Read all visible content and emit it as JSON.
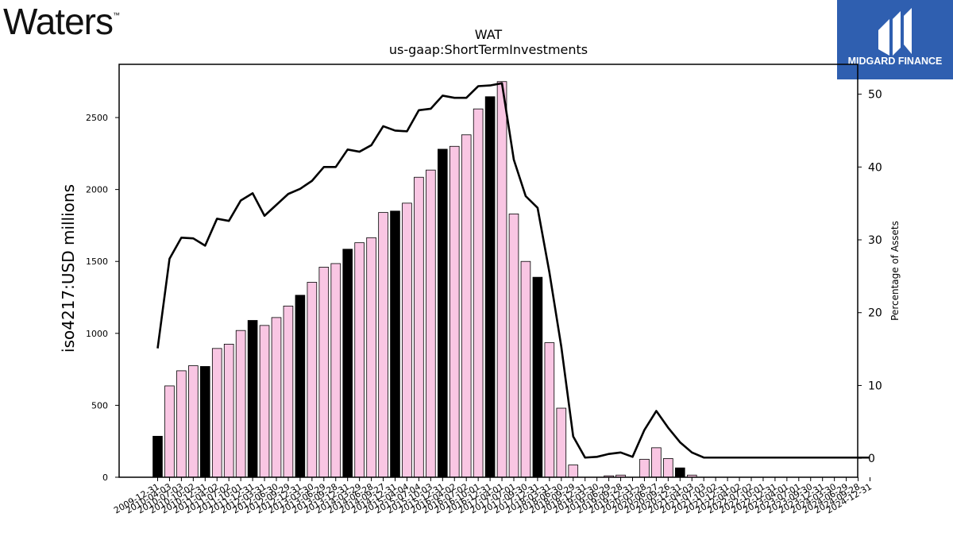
{
  "brand": {
    "left_logo": "Waters",
    "left_logo_mark": "™",
    "right_logo_text": "MIDGARD FINANCE"
  },
  "colors": {
    "bar_highlight": "#000000",
    "bar_normal": "#f9c6e3",
    "line": "#000000",
    "brand_blue": "#2f5fb0"
  },
  "chart_data": {
    "type": "bar",
    "title": "WAT",
    "subtitle": "us-gaap:ShortTermInvestments",
    "ylabel": "iso4217:USD  millions",
    "y2label": "Percentage of Assets",
    "ylim": [
      0,
      2870
    ],
    "y2lim": [
      -2.6,
      54.1
    ],
    "yticks": [
      0,
      500,
      1000,
      1500,
      2000,
      2500
    ],
    "y2ticks": [
      0,
      10,
      20,
      30,
      40,
      50
    ],
    "categories": [
      "2009-12-31",
      "2010-04-03",
      "2010-07-03",
      "2010-10-02",
      "2010-12-31",
      "2011-04-02",
      "2011-07-02",
      "2011-10-01",
      "2011-12-31",
      "2012-03-31",
      "2012-06-30",
      "2012-09-29",
      "2012-12-31",
      "2013-03-30",
      "2013-06-29",
      "2013-09-28",
      "2013-12-31",
      "2014-03-29",
      "2014-06-28",
      "2014-09-27",
      "2014-12-31",
      "2015-04-04",
      "2015-07-04",
      "2015-10-03",
      "2015-12-31",
      "2016-04-02",
      "2016-07-02",
      "2016-10-01",
      "2016-12-31",
      "2017-04-01",
      "2017-07-01",
      "2017-09-30",
      "2017-12-31",
      "2018-03-31",
      "2018-06-30",
      "2018-09-29",
      "2018-12-31",
      "2019-03-30",
      "2019-06-29",
      "2019-09-28",
      "2019-12-31",
      "2020-03-28",
      "2020-06-27",
      "2020-09-26",
      "2020-12-31",
      "2021-04-03",
      "2021-07-03",
      "2021-10-02",
      "2021-12-31",
      "2022-04-02",
      "2022-07-02",
      "2022-10-01",
      "2022-12-31",
      "2023-04-01",
      "2023-07-01",
      "2023-09-30",
      "2023-12-31",
      "2024-03-30",
      "2024-06-29",
      "2024-09-28",
      "2024-12-31"
    ],
    "highlight": [
      true,
      false,
      false,
      false,
      true,
      false,
      false,
      false,
      true,
      false,
      false,
      false,
      true,
      false,
      false,
      false,
      true,
      false,
      false,
      false,
      true,
      false,
      false,
      false,
      true,
      false,
      false,
      false,
      true,
      false,
      false,
      false,
      true,
      false,
      false,
      false,
      true,
      false,
      false,
      false,
      true,
      false,
      false,
      false,
      true,
      false,
      false,
      false,
      true,
      false,
      false,
      false,
      true,
      false,
      false,
      false,
      true,
      false,
      false,
      false,
      true
    ],
    "series": [
      {
        "name": "iso4217:USD  millions",
        "type": "bar",
        "values": [
          285,
          635,
          740,
          775,
          770,
          895,
          925,
          1020,
          1090,
          1055,
          1110,
          1190,
          1265,
          1355,
          1460,
          1485,
          1585,
          1630,
          1665,
          1840,
          1850,
          1905,
          2085,
          2135,
          2280,
          2300,
          2380,
          2560,
          2645,
          2750,
          1830,
          1500,
          1390,
          935,
          480,
          85,
          0,
          0,
          10,
          15,
          0,
          125,
          205,
          130,
          65,
          15,
          0,
          0,
          0,
          0,
          0,
          0,
          0,
          0,
          0,
          0,
          0,
          0,
          0,
          0,
          0
        ]
      },
      {
        "name": "Percentage of Assets",
        "type": "line",
        "axis": "right",
        "values": [
          15.1,
          27.4,
          30.3,
          30.2,
          29.2,
          32.9,
          32.6,
          35.4,
          36.4,
          33.3,
          34.8,
          36.3,
          37.0,
          38.1,
          40.0,
          40.0,
          42.4,
          42.1,
          43.0,
          45.6,
          45.0,
          44.9,
          47.8,
          48.0,
          49.8,
          49.5,
          49.5,
          51.1,
          51.2,
          51.5,
          41.0,
          36.0,
          34.4,
          25.5,
          15.3,
          3.0,
          0.1,
          0.2,
          0.6,
          0.8,
          0.2,
          3.9,
          6.5,
          4.2,
          2.2,
          0.8,
          0.1,
          0.1,
          0.1,
          0.1,
          0.1,
          0.1,
          0.1,
          0.1,
          0.1,
          0.1,
          0.1,
          0.1,
          0.1,
          0.1,
          0.1
        ]
      }
    ]
  }
}
